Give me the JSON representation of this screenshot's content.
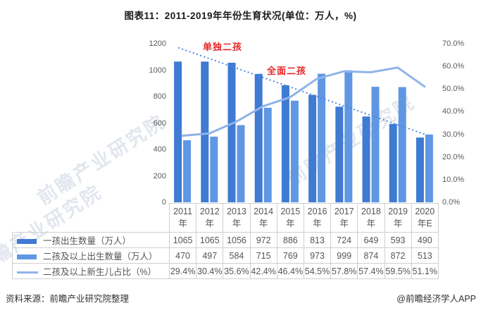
{
  "title": "图表11：2011-2019年年份生育状况(单位：万人，%)",
  "chart_data": {
    "type": "bar",
    "combo": "dual-axis bar + line",
    "categories": [
      "2011年",
      "2012年",
      "2013年",
      "2014年",
      "2015年",
      "2016年",
      "2017年",
      "2018年",
      "2019年",
      "2020年E"
    ],
    "series": [
      {
        "name": "一孩出生数量（万人）",
        "type": "bar",
        "color": "#3F7AD3",
        "values": [
          1065,
          1065,
          1056,
          972,
          886,
          813,
          724,
          649,
          593,
          490
        ],
        "display": [
          "1065",
          "1065",
          "1056",
          "972",
          "886",
          "813",
          "724",
          "649",
          "593",
          "490"
        ]
      },
      {
        "name": "二孩及以上出生数量（万人）",
        "type": "bar",
        "color": "#5F97E3",
        "values": [
          470,
          497,
          584,
          715,
          769,
          973,
          999,
          874,
          872,
          513
        ],
        "display": [
          "470",
          "497",
          "584",
          "715",
          "769",
          "973",
          "999",
          "874",
          "872",
          "513"
        ]
      },
      {
        "name": "二孩及以上新生儿占比（%）",
        "type": "line",
        "color": "#8FB4E9",
        "values": [
          29.4,
          30.4,
          35.6,
          42.4,
          46.4,
          54.5,
          57.8,
          57.4,
          59.5,
          51.1
        ],
        "display": [
          "29.4%",
          "30.4%",
          "35.6%",
          "42.4%",
          "46.4%",
          "54.5%",
          "57.8%",
          "57.4%",
          "59.5%",
          "51.1%"
        ]
      }
    ],
    "left_axis": {
      "min": 0,
      "max": 1200,
      "ticks": [
        "1200",
        "1000",
        "800",
        "600",
        "400",
        "200",
        "0"
      ]
    },
    "right_axis": {
      "min": 0,
      "max": 70,
      "ticks": [
        "70.0%",
        "60.0%",
        "50.0%",
        "40.0%",
        "30.0%",
        "20.0%",
        "10.0%",
        "0.0%"
      ]
    },
    "annotations": [
      {
        "text": "单独二孩"
      },
      {
        "text": "全面二孩"
      }
    ],
    "trendline": {
      "style": "dotted",
      "color": "#4C87DC",
      "from_value": 1170,
      "to_value": 515
    },
    "grid": false,
    "legend_position": "table-left"
  },
  "footer": {
    "source": "资料来源：前瞻产业研究院整理",
    "credit": "@前瞻经济学人APP"
  },
  "watermark": {
    "text": "前瞻产业研究院"
  }
}
